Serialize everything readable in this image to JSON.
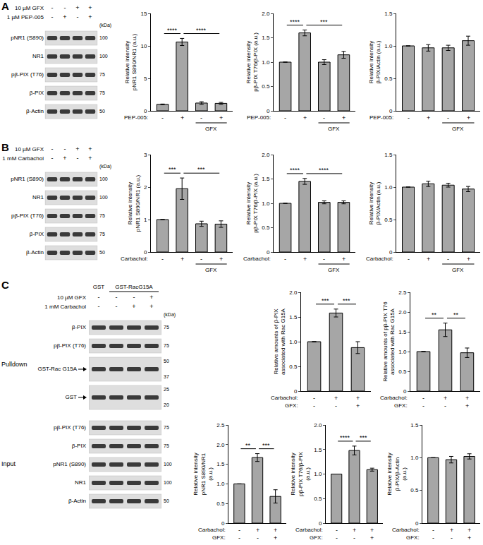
{
  "panels": [
    {
      "label": "A",
      "blot": {
        "conditions": [
          {
            "label": "10 µM GFX",
            "values": [
              "-",
              "-",
              "+",
              "+"
            ]
          },
          {
            "label": "1 µM PEP-005",
            "values": [
              "-",
              "+",
              "-",
              "+"
            ]
          }
        ],
        "kda_label": "(kDa)",
        "rows": [
          {
            "label": "pNR1 (S890)",
            "kda": [
              "100"
            ]
          },
          {
            "label": "NR1",
            "kda": [
              "100"
            ]
          },
          {
            "label": "pβ-PIX (T76)",
            "kda": [
              "75"
            ]
          },
          {
            "label": "β-PIX",
            "kda": [
              "75"
            ]
          },
          {
            "label": "β-Actin",
            "kda": [
              "50"
            ]
          }
        ]
      }
    },
    {
      "label": "B",
      "blot": {
        "conditions": [
          {
            "label": "10 µM GFX",
            "values": [
              "-",
              "-",
              "+",
              "+"
            ]
          },
          {
            "label": "1 mM Carbachol",
            "values": [
              "-",
              "+",
              "-",
              "+"
            ]
          }
        ],
        "kda_label": "(kDa)",
        "rows": [
          {
            "label": "pNR1 (S890)",
            "kda": [
              "100"
            ]
          },
          {
            "label": "NR1",
            "kda": [
              "100"
            ]
          },
          {
            "label": "pβ-PIX (T76)",
            "kda": [
              "75"
            ]
          },
          {
            "label": "β-PIX",
            "kda": [
              "75"
            ]
          },
          {
            "label": "β-Actin",
            "kda": [
              "50"
            ]
          }
        ]
      }
    },
    {
      "label": "C",
      "blot": {
        "lane_groups": [
          {
            "label": "GST",
            "from": 0,
            "to": 0
          },
          {
            "label": "GST-RacG15A",
            "from": 1,
            "to": 3
          }
        ],
        "conditions": [
          {
            "label": "10 µM GFX",
            "values": [
              "-",
              "-",
              "-",
              "+"
            ]
          },
          {
            "label": "1 mM Carbachol",
            "values": [
              "-",
              "-",
              "+",
              "+"
            ]
          }
        ],
        "kda_label": "(kDa)",
        "sections": [
          {
            "label": "Pulldown",
            "rows": [
              {
                "label": "β-PIX",
                "kda": [
                  "75"
                ]
              },
              {
                "label": "pβ-PIX (T76)",
                "kda": [
                  "75"
                ]
              },
              {
                "label": "GST-Rac G15A",
                "kda": [
                  "50",
                  "37"
                ],
                "marker": "arrow"
              },
              {
                "label": "GST",
                "kda": [
                  "25",
                  "20"
                ],
                "marker": "arrow"
              }
            ]
          },
          {
            "label": "Input",
            "rows": [
              {
                "label": "pβ-PIX (T76)",
                "kda": [
                  "75"
                ]
              },
              {
                "label": "β-PIX",
                "kda": [
                  "75"
                ]
              },
              {
                "label": "pNR1 (S890)",
                "kda": [
                  "100"
                ]
              },
              {
                "label": "NR1",
                "kda": [
                  "100"
                ]
              },
              {
                "label": "β-Actin",
                "kda": [
                  "50"
                ]
              }
            ]
          }
        ]
      }
    }
  ],
  "chart_data": [
    {
      "type": "bar",
      "ylabel": [
        "Relative intensity",
        "pNR1 S890/NR1 (a.u.)"
      ],
      "x_rows": [
        {
          "label": "PEP-005:",
          "values": [
            "-",
            "+",
            "-",
            "+"
          ]
        }
      ],
      "group_label": {
        "text": "GFX",
        "from": 2,
        "to": 3
      },
      "values": [
        1,
        10.6,
        1.2,
        1.15
      ],
      "error": [
        0.05,
        0.55,
        0.2,
        0.15
      ],
      "color": "#a6a6a6",
      "ylim": [
        0,
        15
      ],
      "yticks": [
        0,
        5,
        10,
        15
      ],
      "grid": false,
      "significance": [
        {
          "from": 0,
          "to": 1,
          "label": "****"
        },
        {
          "from": 1,
          "to": 3,
          "label": "****"
        }
      ]
    },
    {
      "type": "bar",
      "ylabel": [
        "Relative intensity",
        "pβ-PIX T76/β-PIX (a.u.)"
      ],
      "x_rows": [
        {
          "label": "PEP-005:",
          "values": [
            "-",
            "+",
            "-",
            "+"
          ]
        }
      ],
      "group_label": {
        "text": "GFX",
        "from": 2,
        "to": 3
      },
      "values": [
        1,
        1.6,
        1.0,
        1.15
      ],
      "error": [
        0,
        0.06,
        0.05,
        0.07
      ],
      "color": "#a6a6a6",
      "ylim": [
        0,
        2
      ],
      "yticks": [
        0,
        0.5,
        {
          "value": 1,
          "label": "1.0"
        },
        1.5,
        {
          "value": 2,
          "label": "2.0"
        }
      ],
      "grid": false,
      "significance": [
        {
          "from": 0,
          "to": 1,
          "label": "****"
        },
        {
          "from": 1,
          "to": 3,
          "label": "***"
        }
      ]
    },
    {
      "type": "bar",
      "ylabel": [
        "Relative intensity",
        "β-PIX/Actin (a.u.)"
      ],
      "x_rows": [
        {
          "label": "PEP-005:",
          "values": [
            "-",
            "+",
            "-",
            "+"
          ]
        }
      ],
      "group_label": {
        "text": "GFX",
        "from": 2,
        "to": 3
      },
      "values": [
        1,
        0.97,
        0.97,
        1.08
      ],
      "error": [
        0,
        0.05,
        0.04,
        0.07
      ],
      "color": "#a6a6a6",
      "ylim": [
        0,
        1.5
      ],
      "yticks": [
        0,
        0.5,
        {
          "value": 1,
          "label": "1.0"
        },
        1.5
      ],
      "grid": false,
      "significance": []
    },
    {
      "type": "bar",
      "ylabel": [
        "Relative intensity",
        "pNR1 S890/NR1 (a.u.)"
      ],
      "x_rows": [
        {
          "label": "Carbachol:",
          "values": [
            "-",
            "+",
            "-",
            "+"
          ]
        }
      ],
      "group_label": {
        "text": "GFX",
        "from": 2,
        "to": 3
      },
      "values": [
        1,
        1.95,
        0.87,
        0.86
      ],
      "error": [
        0,
        0.33,
        0.08,
        0.1
      ],
      "color": "#a6a6a6",
      "ylim": [
        0,
        3
      ],
      "yticks": [
        0,
        1,
        2,
        3
      ],
      "grid": false,
      "significance": [
        {
          "from": 0,
          "to": 1,
          "label": "***"
        },
        {
          "from": 1,
          "to": 3,
          "label": "***"
        }
      ]
    },
    {
      "type": "bar",
      "ylabel": [
        "Relative intensity",
        "pβ-PIX T76/β-PIX (a.u.)"
      ],
      "x_rows": [
        {
          "label": "Carbachol:",
          "values": [
            "-",
            "+",
            "-",
            "+"
          ]
        }
      ],
      "group_label": {
        "text": "GFX",
        "from": 2,
        "to": 3
      },
      "values": [
        1,
        1.45,
        1.02,
        1.02
      ],
      "error": [
        0,
        0.06,
        0.03,
        0.03
      ],
      "color": "#a6a6a6",
      "ylim": [
        0,
        2
      ],
      "yticks": [
        0,
        0.5,
        {
          "value": 1,
          "label": "1.0"
        },
        1.5,
        {
          "value": 2,
          "label": "2.0"
        }
      ],
      "grid": false,
      "significance": [
        {
          "from": 0,
          "to": 1,
          "label": "****"
        },
        {
          "from": 1,
          "to": 3,
          "label": "****"
        }
      ]
    },
    {
      "type": "bar",
      "ylabel": [
        "Relative intensity",
        "β-PIX/Actin (a.u.)"
      ],
      "x_rows": [
        {
          "label": "Carbachol:",
          "values": [
            "-",
            "+",
            "-",
            "+"
          ]
        }
      ],
      "group_label": {
        "text": "GFX",
        "from": 2,
        "to": 3
      },
      "values": [
        1,
        1.05,
        1.03,
        0.97
      ],
      "error": [
        0,
        0.04,
        0.03,
        0.04
      ],
      "color": "#a6a6a6",
      "ylim": [
        0,
        1.5
      ],
      "yticks": [
        0,
        0.5,
        {
          "value": 1,
          "label": "1.0"
        },
        1.5
      ],
      "grid": false,
      "significance": []
    },
    {
      "type": "bar",
      "ylabel": [
        "Relative amounts of β-PIX",
        "associated with Rac G15A"
      ],
      "x_rows": [
        {
          "label": "Carbachol:",
          "values": [
            "-",
            "+",
            "+"
          ]
        },
        {
          "label": "GFX:",
          "values": [
            "-",
            "-",
            "+"
          ]
        }
      ],
      "values": [
        1,
        1.58,
        0.88
      ],
      "error": [
        0,
        0.08,
        0.12
      ],
      "color": "#a6a6a6",
      "ylim": [
        0,
        2
      ],
      "yticks": [
        0,
        0.5,
        {
          "value": 1,
          "label": "1.0"
        },
        1.5,
        {
          "value": 2,
          "label": "2.0"
        }
      ],
      "grid": false,
      "significance": [
        {
          "from": 0,
          "to": 1,
          "label": "***"
        },
        {
          "from": 1,
          "to": 2,
          "label": "***"
        }
      ]
    },
    {
      "type": "bar",
      "ylabel": [
        "Relative amounts of pβ-PIX T76",
        "associated with Rac G15A"
      ],
      "x_rows": [
        {
          "label": "Carbachol:",
          "values": [
            "-",
            "+",
            "+"
          ]
        },
        {
          "label": "GFX:",
          "values": [
            "-",
            "-",
            "+"
          ]
        }
      ],
      "values": [
        1,
        1.55,
        0.97
      ],
      "error": [
        0,
        0.17,
        0.12
      ],
      "color": "#a6a6a6",
      "ylim": [
        0,
        2.5
      ],
      "yticks": [
        0,
        0.5,
        {
          "value": 1,
          "label": "1.0"
        },
        1.5,
        {
          "value": 2,
          "label": "2.0"
        },
        2.5
      ],
      "grid": false,
      "significance": [
        {
          "from": 0,
          "to": 1,
          "label": "**"
        },
        {
          "from": 1,
          "to": 2,
          "label": "**"
        }
      ]
    },
    {
      "type": "bar",
      "ylabel": [
        "Relative intensity",
        "pNR1 S890/NR1",
        "(a.u.)"
      ],
      "x_rows": [
        {
          "label": "Carbachol:",
          "values": [
            "-",
            "+",
            "+"
          ]
        },
        {
          "label": "GFX:",
          "values": [
            "-",
            "-",
            "+"
          ]
        }
      ],
      "values": [
        1,
        1.67,
        0.68
      ],
      "error": [
        0,
        0.1,
        0.17
      ],
      "color": "#a6a6a6",
      "ylim": [
        0,
        2.5
      ],
      "yticks": [
        0,
        0.5,
        {
          "value": 1,
          "label": "1.0"
        },
        1.5,
        {
          "value": 2,
          "label": "2.0"
        },
        2.5
      ],
      "grid": false,
      "significance": [
        {
          "from": 0,
          "to": 1,
          "label": "**"
        },
        {
          "from": 1,
          "to": 2,
          "label": "***"
        }
      ]
    },
    {
      "type": "bar",
      "ylabel": [
        "Relative intensity",
        "pβ-PIX T76/β-PIX",
        "(a.u.)"
      ],
      "x_rows": [
        {
          "label": "Carbachol:",
          "values": [
            "-",
            "+",
            "+"
          ]
        },
        {
          "label": "GFX:",
          "values": [
            "-",
            "-",
            "+"
          ]
        }
      ],
      "values": [
        1,
        1.48,
        1.09
      ],
      "error": [
        0,
        0.09,
        0.03
      ],
      "color": "#a6a6a6",
      "ylim": [
        0,
        2
      ],
      "yticks": [
        0,
        0.5,
        {
          "value": 1,
          "label": "1.0"
        },
        1.5,
        {
          "value": 2,
          "label": "2.0"
        }
      ],
      "grid": false,
      "significance": [
        {
          "from": 0,
          "to": 1,
          "label": "****"
        },
        {
          "from": 1,
          "to": 2,
          "label": "***"
        }
      ]
    },
    {
      "type": "bar",
      "ylabel": [
        "Relative intensity",
        "β-PIX/β-Actin",
        "(a.u.)"
      ],
      "x_rows": [
        {
          "label": "Carbachol:",
          "values": [
            "-",
            "+",
            "+"
          ]
        },
        {
          "label": "GFX:",
          "values": [
            "-",
            "-",
            "+"
          ]
        }
      ],
      "values": [
        1,
        0.97,
        1.02
      ],
      "error": [
        0,
        0.05,
        0.04
      ],
      "color": "#a6a6a6",
      "ylim": [
        0,
        1.5
      ],
      "yticks": [
        0,
        0.5,
        {
          "value": 1,
          "label": "1.0"
        },
        1.5
      ],
      "grid": false,
      "significance": []
    }
  ]
}
